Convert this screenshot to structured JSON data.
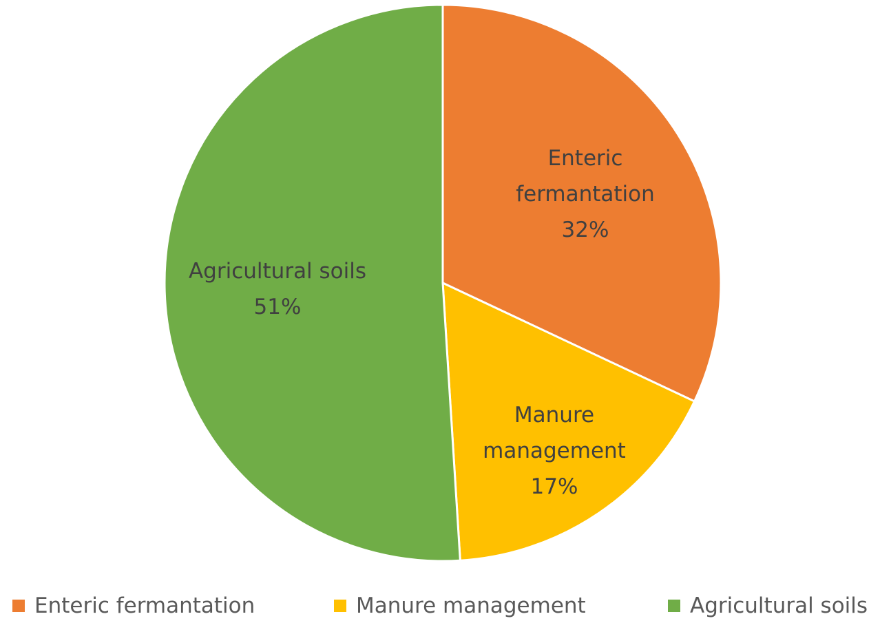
{
  "chart_data": {
    "type": "pie",
    "categories": [
      "Enteric fermantation",
      "Manure management",
      "Agricultural soils"
    ],
    "values": [
      32,
      17,
      51
    ],
    "value_labels": [
      "32%",
      "17%",
      "51%"
    ],
    "colors": [
      "#ed7d31",
      "#ffc000",
      "#70ad47"
    ],
    "legend": "bottom"
  }
}
